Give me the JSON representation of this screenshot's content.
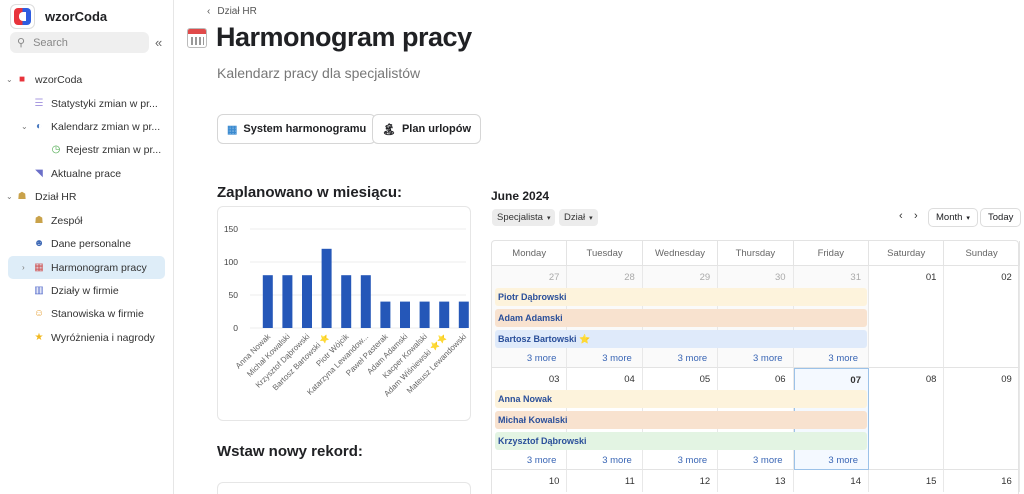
{
  "sidebar": {
    "app_name": "wzorCoda",
    "search_placeholder": "Search",
    "items": [
      {
        "label": "wzorCoda",
        "icon": "coda-logo-icon"
      },
      {
        "label": "Statystyki zmian w pr...",
        "icon": "list-icon"
      },
      {
        "label": "Kalendarz zmian w pr...",
        "icon": "toggle-icon"
      },
      {
        "label": "Rejestr zmian w pr...",
        "icon": "clock-icon"
      },
      {
        "label": "Aktualne prace",
        "icon": "camera-icon"
      },
      {
        "label": "Dział HR",
        "icon": "team-icon"
      },
      {
        "label": "Zespół",
        "icon": "people-icon"
      },
      {
        "label": "Dane personalne",
        "icon": "person-icon"
      },
      {
        "label": "Harmonogram pracy",
        "icon": "calendar-icon"
      },
      {
        "label": "Działy w firmie",
        "icon": "building-icon"
      },
      {
        "label": "Stanowiska w firmie",
        "icon": "face-icon"
      },
      {
        "label": "Wyróżnienia i nagrody",
        "icon": "star-icon"
      }
    ]
  },
  "breadcrumb": "Dział HR",
  "page": {
    "title": "Harmonogram pracy",
    "subtitle": "Kalendarz pracy dla specjalistów"
  },
  "buttons": {
    "system": "System harmonogramu",
    "urlopy": "Plan urlopów"
  },
  "chart_heading": "Zaplanowano w miesiącu:",
  "form_heading": "Wstaw nowy rekord:",
  "chart_data": {
    "type": "bar",
    "categories": [
      "Anna Nowak",
      "Michał Kowalski",
      "Krzysztof Dąbrowski",
      "Bartosz Bartowski ⭐",
      "Piotr Wójcik",
      "Katarzyna Lewandow...",
      "Paweł Pasterak",
      "Adam Adamski",
      "Kacper Kowalski",
      "Adam Wiśniewski ⭐⭐",
      "Mateusz Lewandowski"
    ],
    "values": [
      80,
      80,
      80,
      120,
      80,
      80,
      40,
      40,
      40,
      40,
      40
    ],
    "yticks": [
      0,
      50,
      100,
      150
    ],
    "ylim": [
      0,
      150
    ],
    "grid": true,
    "color": "#2557b8"
  },
  "calendar": {
    "title": "June 2024",
    "filters": [
      "Specjalista",
      "Dział"
    ],
    "view": "Month",
    "today_label": "Today",
    "days": [
      "Monday",
      "Tuesday",
      "Wednesday",
      "Thursday",
      "Friday",
      "Saturday",
      "Sunday"
    ],
    "weeks": [
      {
        "dates": [
          "27",
          "28",
          "29",
          "30",
          "31",
          "01",
          "02"
        ],
        "events": [
          {
            "name": "Piotr Dąbrowski",
            "color": "#fdf3dc"
          },
          {
            "name": "Adam Adamski",
            "color": "#f8e2cf"
          },
          {
            "name": "Bartosz Bartowski ⭐",
            "color": "#dfeafa"
          }
        ],
        "more": "3 more"
      },
      {
        "dates": [
          "03",
          "04",
          "05",
          "06",
          "07",
          "08",
          "09"
        ],
        "events": [
          {
            "name": "Anna Nowak",
            "color": "#fdf3dc"
          },
          {
            "name": "Michał Kowalski",
            "color": "#f8e2cf"
          },
          {
            "name": "Krzysztof Dąbrowski",
            "color": "#e3f4e3"
          }
        ],
        "more": "3 more"
      },
      {
        "dates": [
          "10",
          "11",
          "12",
          "13",
          "14",
          "15",
          "16"
        ]
      }
    ]
  }
}
